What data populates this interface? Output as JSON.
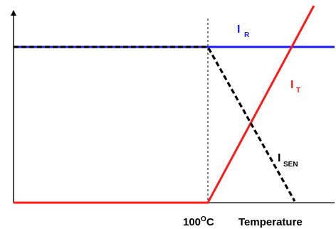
{
  "chart_data": {
    "type": "line",
    "x_unit": "°C",
    "x_marker": 100,
    "x_marker_label_prefix": "100",
    "x_marker_label_sup": "O",
    "x_marker_label_suffix": "C",
    "xlabel": "Temperature",
    "ylabel": "",
    "xlim": [
      0,
      180
    ],
    "ylim": [
      0,
      1.1
    ],
    "grid": false,
    "series": [
      {
        "name": "I_R",
        "label_main": "I",
        "label_sub": "R",
        "color": "#1a1aff",
        "style": "solid",
        "points": [
          [
            0,
            1.0
          ],
          [
            180,
            1.0
          ]
        ]
      },
      {
        "name": "I_T",
        "label_main": "I",
        "label_sub": "T",
        "color": "#ff1a1a",
        "style": "solid",
        "points": [
          [
            0,
            0.0
          ],
          [
            100,
            0.0
          ],
          [
            174,
            1.3
          ]
        ]
      },
      {
        "name": "I_SEN",
        "label_main": "I",
        "label_sub": "SEN",
        "color": "#000000",
        "style": "dashed",
        "points": [
          [
            0,
            1.0
          ],
          [
            100,
            1.0
          ],
          [
            152,
            0.0
          ]
        ]
      }
    ],
    "axis_color": "#000000"
  }
}
